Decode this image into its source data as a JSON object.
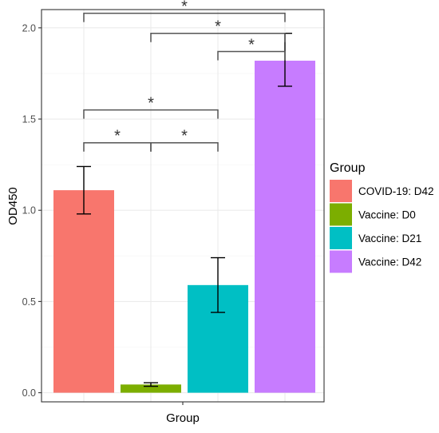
{
  "chart_data": {
    "type": "bar",
    "xlabel": "Group",
    "ylabel": "OD450",
    "ylim": [
      -0.05,
      2.1
    ],
    "yticks": [
      0.0,
      0.5,
      1.0,
      1.5,
      2.0
    ],
    "ytick_labels": [
      "0.0",
      "0.5",
      "1.0",
      "1.5",
      "2.0"
    ],
    "grid": true,
    "legend_position": "right",
    "legend_title": "Group",
    "categories": [
      "COVID-19: D42",
      "Vaccine: D0",
      "Vaccine: D21",
      "Vaccine: D42"
    ],
    "values": [
      1.11,
      0.045,
      0.59,
      1.82
    ],
    "error_low": [
      0.98,
      0.035,
      0.44,
      1.68
    ],
    "error_high": [
      1.24,
      0.055,
      0.74,
      1.97
    ],
    "colors": [
      "#F8766D",
      "#7CAE00",
      "#00BFC4",
      "#C77CFF"
    ],
    "significance": [
      {
        "from": 0,
        "to": 3,
        "y": 2.08,
        "label": "*"
      },
      {
        "from": 1,
        "to": 3,
        "y": 1.97,
        "label": "*"
      },
      {
        "from": 2,
        "to": 3,
        "y": 1.87,
        "label": "*"
      },
      {
        "from": 0,
        "to": 2,
        "y": 1.55,
        "label": "*"
      },
      {
        "from": 0,
        "to": 1,
        "y": 1.37,
        "label": "*"
      },
      {
        "from": 1,
        "to": 2,
        "y": 1.37,
        "label": "*"
      }
    ]
  }
}
